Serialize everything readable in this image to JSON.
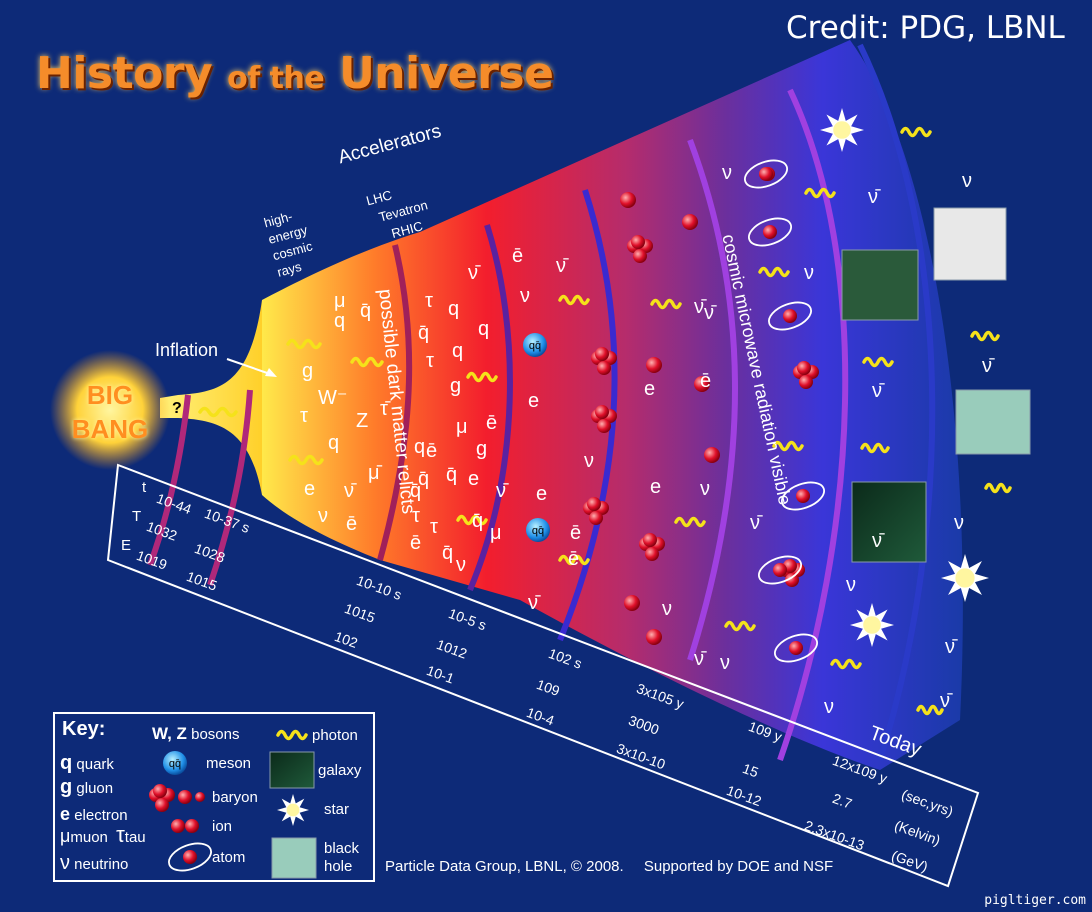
{
  "credit": "Credit: PDG, LBNL",
  "title": {
    "part1": "History",
    "part2": "of the",
    "part3": "Universe"
  },
  "big_bang": {
    "line1": "BIG",
    "line2": "BANG"
  },
  "inflation_label": "Inflation",
  "question_mark": "?",
  "cosmic_rays": [
    "high-",
    "energy",
    "cosmic",
    "rays"
  ],
  "accelerators": {
    "title": "Accelerators",
    "items": [
      "LHC",
      "Tevatron",
      "RHIC"
    ]
  },
  "band_labels": {
    "dark_matter": "possible dark matter relicts",
    "cmb": "cosmic microwave radiation visible"
  },
  "today_label": "Today",
  "scale_rows": {
    "t": "t",
    "T": "T",
    "E": "E"
  },
  "scale_ticks": [
    {
      "t": "10-44",
      "T": "1032",
      "E": "1019"
    },
    {
      "t": "10-37 s",
      "T": "1028",
      "E": "1015"
    },
    {
      "t": "10-10 s",
      "T": "1015",
      "E": "102"
    },
    {
      "t": "10-5 s",
      "T": "1012",
      "E": "10-1"
    },
    {
      "t": "102 s",
      "T": "109",
      "E": "10-4"
    },
    {
      "t": "3x105 y",
      "T": "3000",
      "E": "3x10-10"
    },
    {
      "t": "109 y",
      "T": "15",
      "E": "10-12"
    },
    {
      "t": "12x109 y",
      "T": "2.7",
      "E": "2.3x10-13"
    }
  ],
  "units": {
    "t": "(sec,yrs)",
    "T": "(Kelvin)",
    "E": "(GeV)"
  },
  "early_particles": [
    "q",
    "q̄",
    "g",
    "μ",
    "τ",
    "q",
    "ν̄",
    "q",
    "W⁻",
    "q̄",
    "q",
    "τ",
    "τ",
    "Z",
    "τ̄",
    "g",
    "q",
    "e",
    "ν̄",
    "μ̄",
    "ν",
    "ē",
    "q̄",
    "μ",
    "ē",
    "g",
    "q̄",
    "e",
    "ν̄",
    "τ",
    "q̄",
    "μ",
    "ē",
    "q",
    "ν",
    "ē",
    "τ",
    "q̄",
    "q̄"
  ],
  "mid_particles": [
    "ē",
    "ν̄",
    "ν",
    "e",
    "ν",
    "e",
    "ē",
    "ν̄",
    "ē",
    "e",
    "ν",
    "ν̄",
    "ē",
    "e",
    "ν",
    "ν̄",
    "ν",
    "ν̄"
  ],
  "late_particles": [
    "ν",
    "ν̄",
    "ν",
    "ν̄",
    "ν̄",
    "ν",
    "ν̄",
    "ν",
    "ν",
    "ν̄",
    "ν̄",
    "ν",
    "ν̄"
  ],
  "meson_label": "qq̄",
  "key": {
    "title": "Key:",
    "quark": {
      "symbol": "q",
      "label": "quark"
    },
    "gluon": {
      "symbol": "g",
      "label": "gluon"
    },
    "electron": {
      "symbol": "e",
      "label": "electron"
    },
    "muon": {
      "symbol": "μ",
      "label": "muon"
    },
    "tau": {
      "symbol": "τ",
      "label": "tau"
    },
    "neutrino": {
      "symbol": "ν",
      "label": "neutrino"
    },
    "bosons": {
      "symbol": "W, Z",
      "label": "bosons"
    },
    "meson": "meson",
    "baryon": "baryon",
    "ion": "ion",
    "atom": "atom",
    "photon": "photon",
    "galaxy": "galaxy",
    "star": "star",
    "black_hole": [
      "black",
      "hole"
    ]
  },
  "footer": {
    "left": "Particle Data Group, LBNL, © 2008.",
    "right": "Supported by DOE and NSF"
  },
  "watermark": "pigltiger.com"
}
